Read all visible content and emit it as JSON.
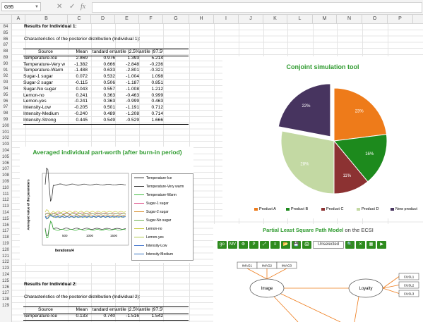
{
  "formula_bar": {
    "name_box": "G95",
    "cancel": "✕",
    "confirm": "✓",
    "fx": "fx",
    "value": ""
  },
  "columns": [
    "A",
    "B",
    "C",
    "D",
    "E",
    "F",
    "G",
    "H",
    "I",
    "J",
    "K",
    "L",
    "M",
    "N",
    "O",
    "P"
  ],
  "rows": [
    "84",
    "85",
    "86",
    "87",
    "88",
    "89",
    "90",
    "91",
    "92",
    "93",
    "94",
    "95",
    "96",
    "97",
    "98",
    "99",
    "100",
    "101",
    "102",
    "103",
    "104",
    "105",
    "106",
    "107",
    "108",
    "109",
    "110",
    "111",
    "112",
    "113",
    "114",
    "115",
    "116",
    "117",
    "118",
    "119",
    "120",
    "121",
    "122",
    "123",
    "124",
    "125",
    "126",
    "127",
    "128",
    "129"
  ],
  "section1": {
    "title": "Results for Individual 1:",
    "subtitle": "Characteristics of the posterior distribution (Individual 1):",
    "headers": [
      "Source",
      "Mean",
      "tandard err",
      "antile (2.5%",
      "antile (97.5%)"
    ],
    "rows": [
      [
        "Temperature-Ice",
        "2.869",
        "0.976",
        "1.393",
        "5.214"
      ],
      [
        "Temperature-Very w",
        "-1.382",
        "0.666",
        "-2.848",
        "-0.236"
      ],
      [
        "Temperature-Warm",
        "-1.488",
        "0.633",
        "-2.801",
        "-0.321"
      ],
      [
        "Sugar-1 sugar",
        "0.072",
        "0.532",
        "-1.004",
        "1.098"
      ],
      [
        "Sugar-2 sugar",
        "-0.115",
        "0.506",
        "-1.187",
        "0.851"
      ],
      [
        "Sugar-No sugar",
        "0.043",
        "0.557",
        "-1.008",
        "1.212"
      ],
      [
        "Lemon-no",
        "0.241",
        "0.363",
        "-0.463",
        "0.999"
      ],
      [
        "Lemon-yes",
        "-0.241",
        "0.363",
        "-0.999",
        "0.463"
      ],
      [
        "Intensity-Low",
        "-0.205",
        "0.501",
        "-1.191",
        "0.712"
      ],
      [
        "Intensity-Medium",
        "-0.240",
        "0.489",
        "-1.208",
        "0.714"
      ],
      [
        "Intensity-Strong",
        "0.445",
        "0.549",
        "-0.529",
        "1.666"
      ]
    ]
  },
  "section2": {
    "title": "Results for Individual 2:",
    "subtitle": "Characteristics of the posterior distribution (Individual 2):",
    "headers": [
      "Source",
      "Mean",
      "tandard err",
      "antile (2.5%",
      "antile (97.5%)"
    ],
    "rows": [
      [
        "Temperature-Ice",
        "0.133",
        "0.740",
        "-1.516",
        "1.542"
      ]
    ]
  },
  "partworth_chart": {
    "title": "Averaged individual part-worth (after burn-in period)",
    "xlabel": "Iterations/4",
    "ylabel": "Averaged value of the parameters",
    "xticks": [
      "500",
      "1000",
      "1500"
    ],
    "legend": [
      "Temperature-Ice",
      "Temperature-Very warm",
      "Temperature-Warm",
      "Sugar-1 sugar",
      "Sugar-2 sugar",
      "Sugar-No sugar",
      "Lemon-no",
      "Lemon-yes",
      "Intensity-Low",
      "Intensity-Medium"
    ],
    "colors": [
      "#222222",
      "#333333",
      "#3dbb3d",
      "#e0508a",
      "#d88c2a",
      "#6ab04c",
      "#c8c83c",
      "#b0c84c",
      "#4a7ad0",
      "#3070c0"
    ]
  },
  "chart_data": {
    "type": "pie",
    "title": "Conjoint simulation tool",
    "categories": [
      "Product A",
      "Product B",
      "Product C",
      "Product D",
      "New product"
    ],
    "values": [
      23,
      16,
      11,
      28,
      22
    ],
    "colors": [
      "#ee7b1a",
      "#1d8a1d",
      "#8c3232",
      "#c3d9a3",
      "#47345f"
    ],
    "labels": [
      "23%",
      "16%",
      "11%",
      "28%",
      "22%"
    ],
    "legend_position": "bottom"
  },
  "pls": {
    "title_bold": "Partial Least Square Path Model",
    "title_rest": " on the ECSI",
    "select_value": "Unselected",
    "buttons": [
      "go",
      "MV",
      "⚙",
      "P",
      "⤢",
      "≡",
      "📂",
      "💾",
      "🖨",
      "🔍",
      "✕",
      "▦",
      "▶"
    ],
    "nodes": [
      "Image",
      "Loyalty"
    ],
    "indicators_left": [
      "IMAG1",
      "IMAG2",
      "IMAG3"
    ],
    "indicators_right": [
      "CUSL1",
      "CUSL2",
      "CUSL3"
    ]
  }
}
